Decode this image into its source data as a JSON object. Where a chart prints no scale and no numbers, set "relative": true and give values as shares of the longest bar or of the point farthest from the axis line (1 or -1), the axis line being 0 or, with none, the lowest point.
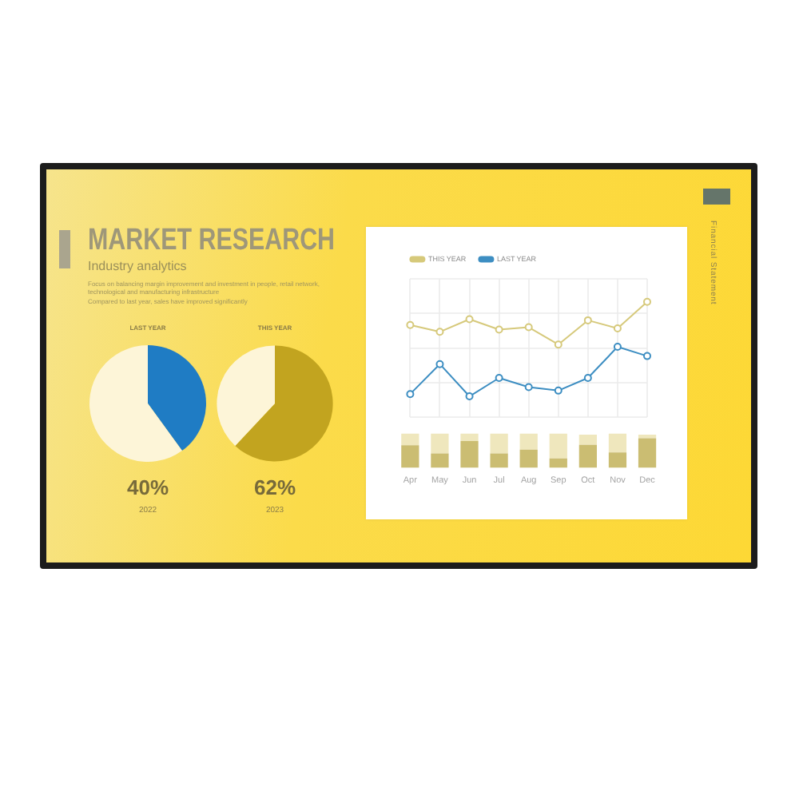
{
  "chart_data": [
    {
      "type": "other",
      "title": "MARKET RESEARCH",
      "subtitle": "Industry analytics",
      "annotations": [
        "Focus on balancing margin improvement and investment in people, retail network, technological and manufacturing infrastructure",
        "Compared to last year, sales have improved significantly",
        "Financial Statement"
      ]
    },
    {
      "type": "pie",
      "title": "LAST YEAR",
      "categories": [
        null,
        null
      ],
      "values": [
        40,
        60
      ],
      "colors": [
        "#1f7cc4",
        "#fdf5d8"
      ],
      "annotations": [
        "40%",
        "2022"
      ]
    },
    {
      "type": "pie",
      "title": "THIS YEAR",
      "categories": [
        null,
        null
      ],
      "values": [
        62,
        38
      ],
      "colors": [
        "#c2a41f",
        "#fdf5d8"
      ],
      "annotations": [
        "62%",
        "2023"
      ]
    },
    {
      "type": "line",
      "relative": true,
      "categories": [
        null,
        null,
        null,
        null,
        null,
        null,
        null,
        null,
        null
      ],
      "grid": true,
      "legend": "top left",
      "marker": "circle",
      "series": [
        {
          "name": "THIS YEAR",
          "color": "#d6c97b",
          "values": [
            0.8,
            0.74,
            0.85,
            0.76,
            0.78,
            0.63,
            0.84,
            0.77,
            1
          ]
        },
        {
          "name": "LAST YEAR",
          "color": "#3d8ec2",
          "values": [
            0.2,
            0.46,
            0.18,
            0.34,
            0.26,
            0.23,
            0.34,
            0.61,
            0.53
          ]
        }
      ]
    },
    {
      "type": "bar",
      "relative": true,
      "stacked": true,
      "categories": [
        "Apr",
        "May",
        "Jun",
        "Jul",
        "Aug",
        "Sep",
        "Oct",
        "Nov",
        "Dec"
      ],
      "tick_labels": "x",
      "series": [
        {
          "color": "#cbbd72",
          "values": [
            0.66,
            0.42,
            0.78,
            0.42,
            0.53,
            0.27,
            0.67,
            0.45,
            0.86
          ]
        },
        {
          "color": "#efe7bd",
          "values": [
            0.34,
            0.58,
            0.22,
            0.58,
            0.47,
            0.73,
            0.3,
            0.55,
            0.11
          ]
        }
      ]
    }
  ]
}
